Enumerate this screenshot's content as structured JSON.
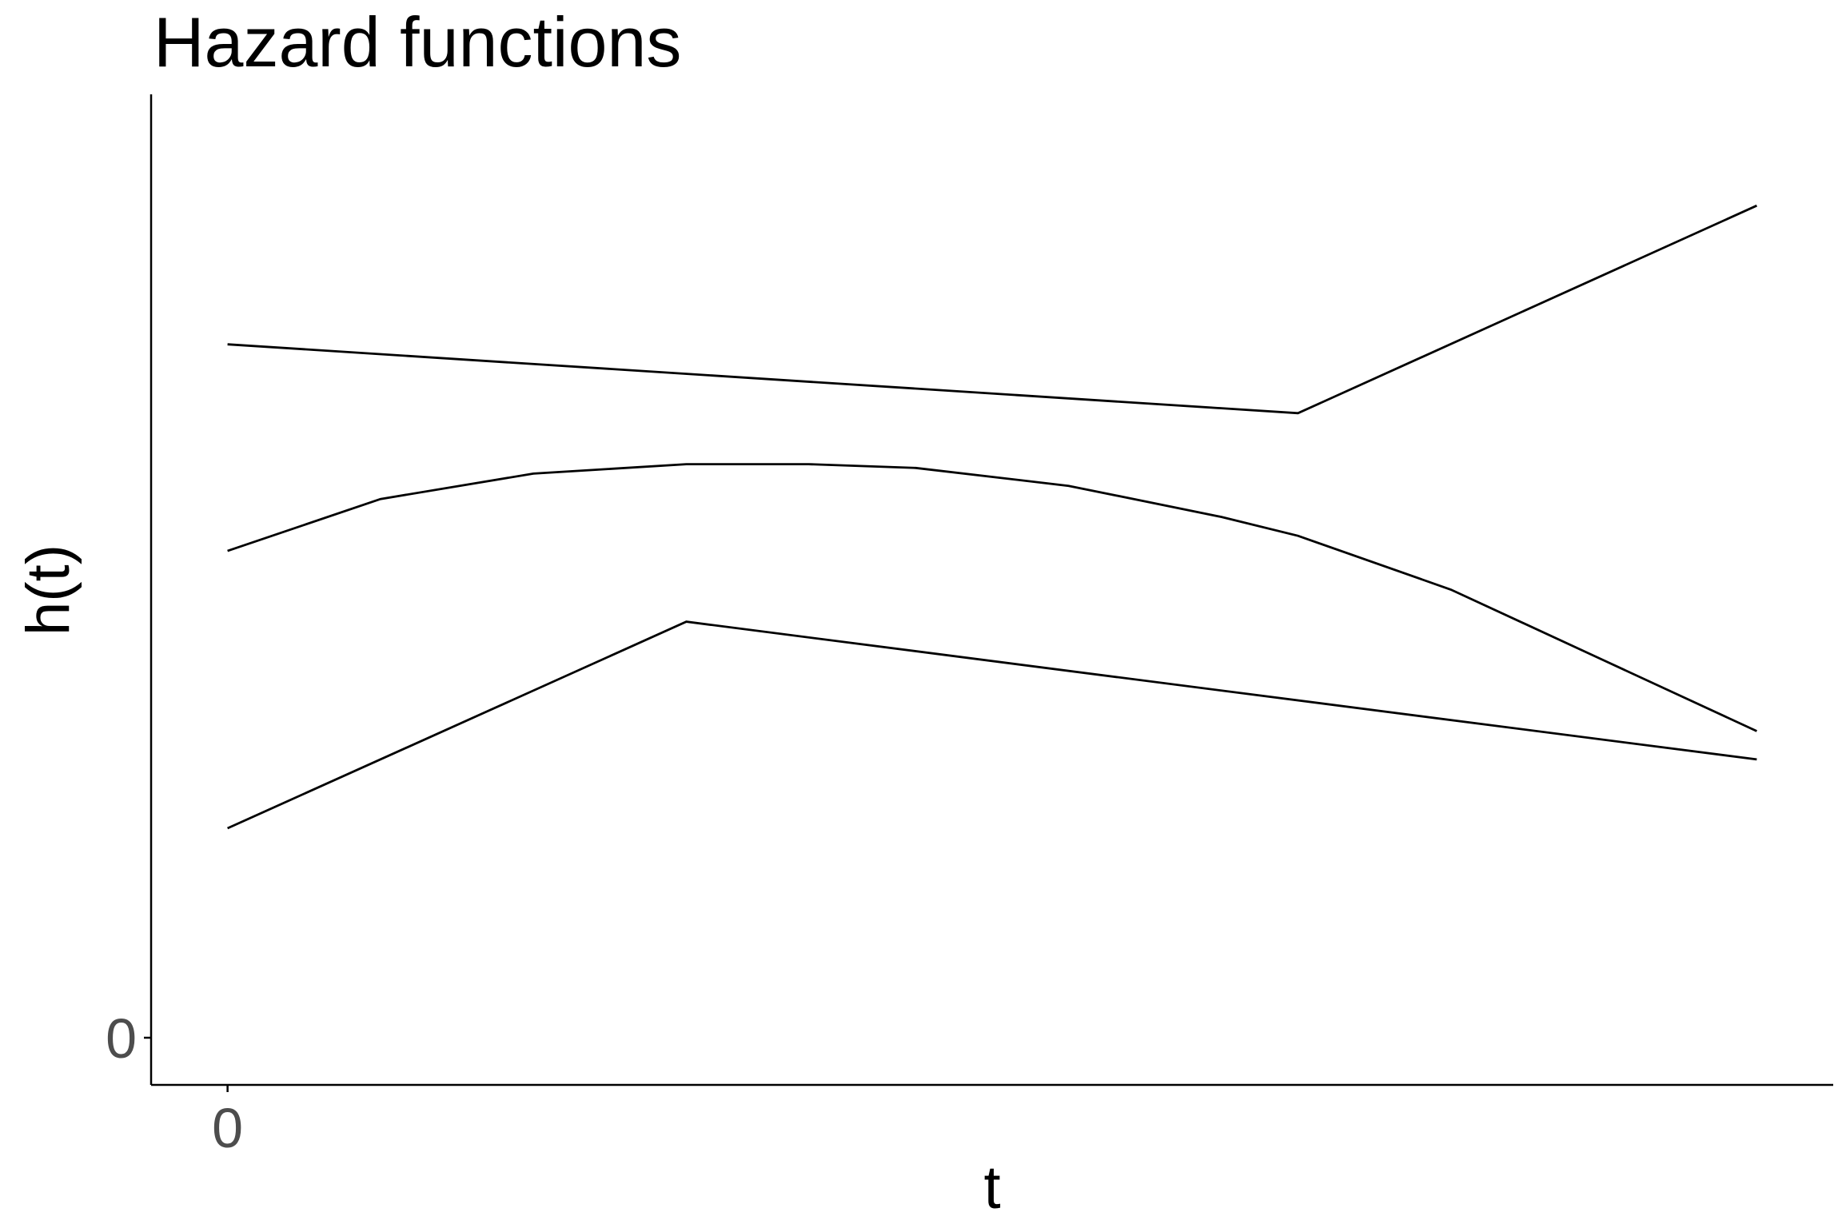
{
  "chart_data": {
    "type": "line",
    "title": "Hazard functions",
    "xlabel": "t",
    "ylabel": "h(t)",
    "x_ticks": [
      {
        "value": 0,
        "label": "0"
      }
    ],
    "y_ticks": [
      {
        "value": 0,
        "label": "0"
      }
    ],
    "xlim": [
      -0.5,
      10.5
    ],
    "ylim": [
      -0.05,
      1.0
    ],
    "grid": false,
    "series": [
      {
        "x": [
          0,
          7,
          10
        ],
        "y": [
          0.735,
          0.662,
          0.882
        ]
      },
      {
        "x": [
          0,
          1,
          2,
          3,
          3.8,
          4.5,
          5.5,
          6.5,
          7,
          8,
          9,
          10
        ],
        "y": [
          0.516,
          0.571,
          0.598,
          0.608,
          0.608,
          0.604,
          0.585,
          0.552,
          0.532,
          0.475,
          0.4,
          0.325
        ]
      },
      {
        "x": [
          0,
          3,
          10
        ],
        "y": [
          0.222,
          0.441,
          0.295
        ]
      }
    ]
  }
}
